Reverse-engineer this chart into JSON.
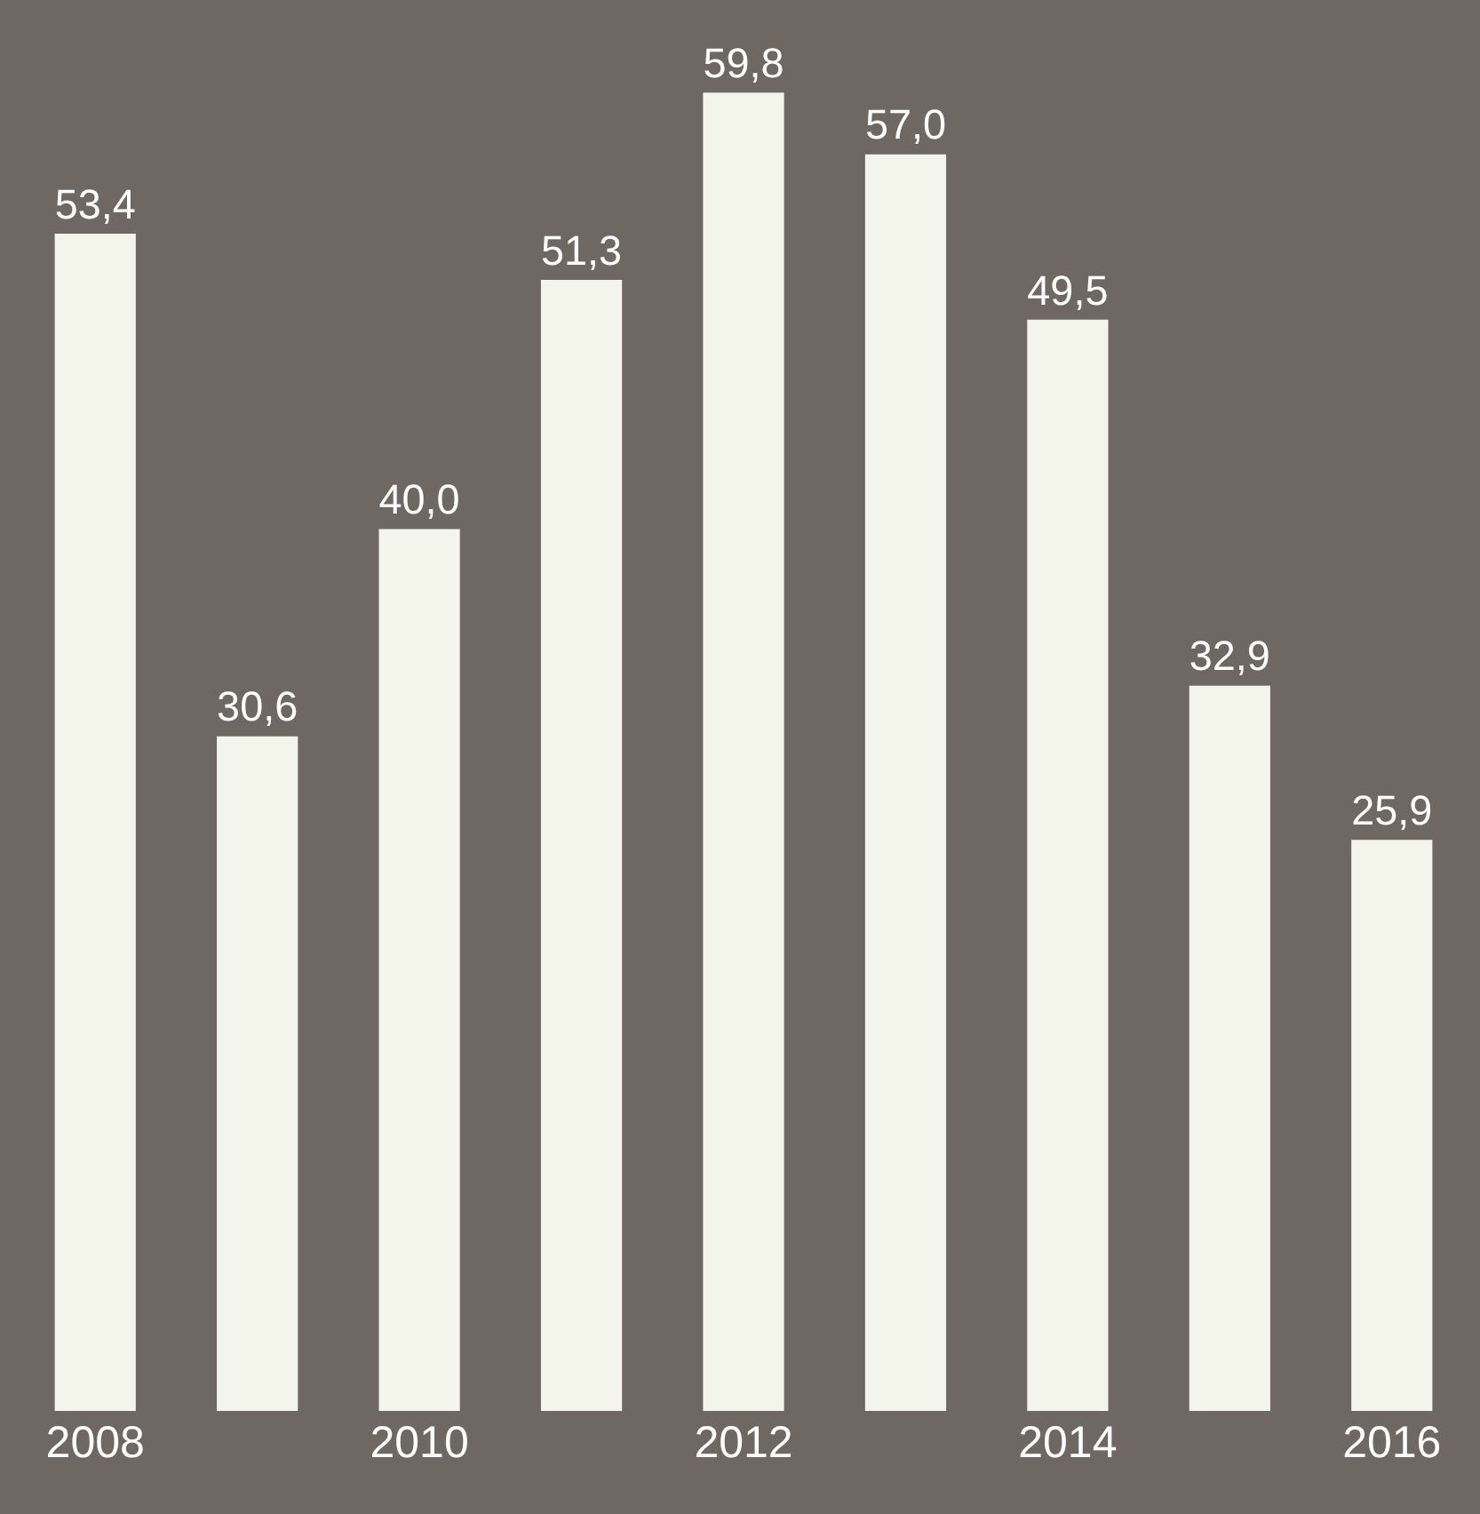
{
  "chart_data": {
    "type": "bar",
    "categories": [
      "2008",
      null,
      "2010",
      null,
      "2012",
      null,
      "2014",
      null,
      "2016"
    ],
    "values": [
      53.4,
      30.6,
      40.0,
      51.3,
      59.8,
      57.0,
      49.5,
      32.9,
      25.9
    ],
    "value_labels": [
      "53,4",
      "30,6",
      "40,0",
      "51,3",
      "59,8",
      "57,0",
      "49,5",
      "32,9",
      "25,9"
    ],
    "color": "#f3f4ea",
    "ylim": [
      0,
      64
    ],
    "tick_labels": "x",
    "grid": false,
    "legend": false
  }
}
